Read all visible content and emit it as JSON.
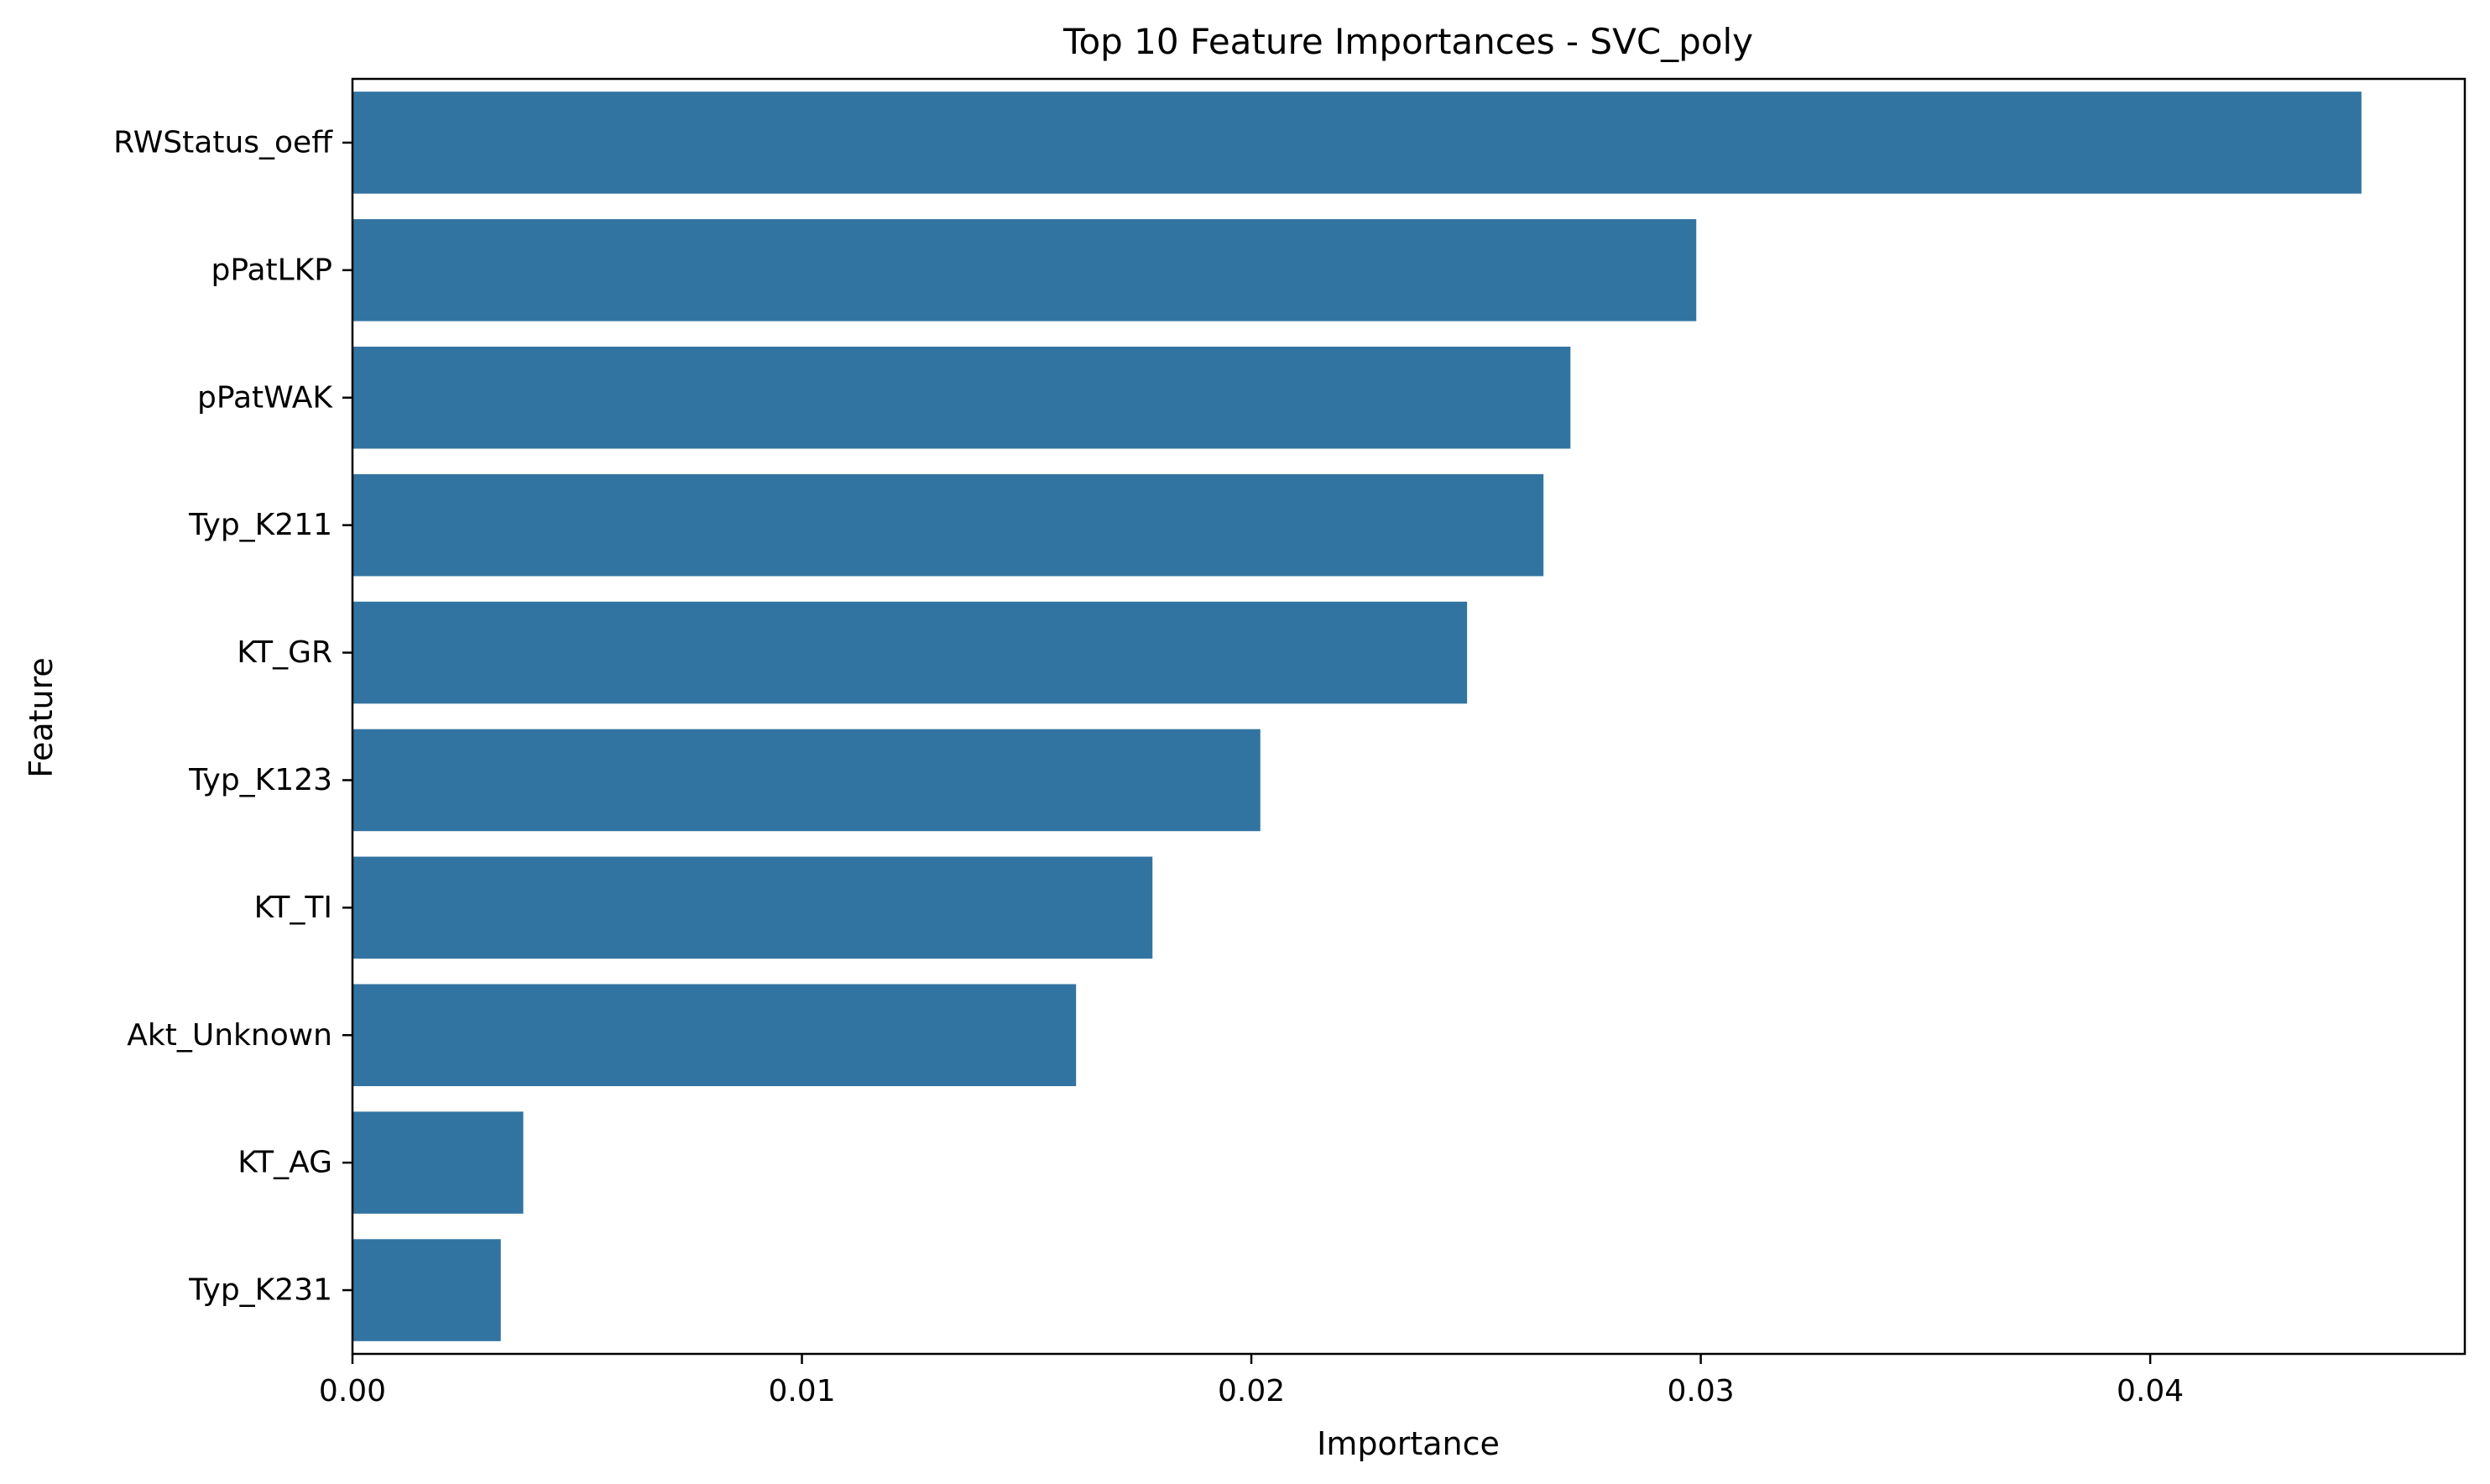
{
  "chart_data": {
    "type": "bar",
    "orientation": "horizontal",
    "title": "Top 10 Feature Importances - SVC_poly",
    "xlabel": "Importance",
    "ylabel": "Feature",
    "categories": [
      "RWStatus_oeff",
      "pPatLKP",
      "pPatWAK",
      "Typ_K211",
      "KT_GR",
      "Typ_K123",
      "KT_TI",
      "Akt_Unknown",
      "KT_AG",
      "Typ_K231"
    ],
    "values": [
      0.0447,
      0.0299,
      0.0271,
      0.0265,
      0.0248,
      0.0202,
      0.0178,
      0.0161,
      0.0038,
      0.0033
    ],
    "xlim": [
      0,
      0.047
    ],
    "xticks": [
      0.0,
      0.01,
      0.02,
      0.03,
      0.04
    ],
    "xtick_labels": [
      "0.00",
      "0.01",
      "0.02",
      "0.03",
      "0.04"
    ],
    "grid": false,
    "bar_color": "#3274a1"
  }
}
